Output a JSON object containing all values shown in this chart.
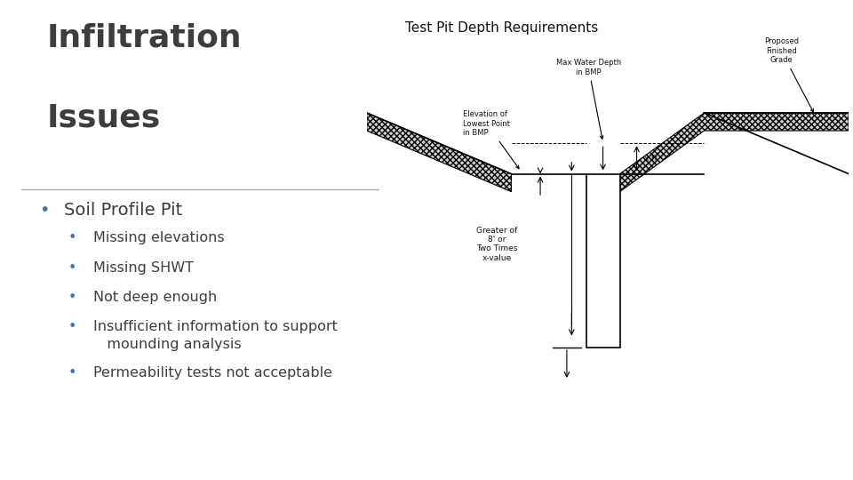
{
  "title_line1": "Infiltration",
  "title_line2": "Issues",
  "title_color": "#3d3d3d",
  "title_fontsize": 26,
  "title_fontfamily": "DejaVu Sans",
  "separator_color": "#aaaaaa",
  "bullet_main": "Soil Profile Pit",
  "bullet_main_color": "#3d3d3d",
  "bullet_main_fontsize": 14,
  "bullet_dot_color": "#4472a8",
  "bullet_sub_color": "#3d3d3d",
  "bullet_sub_fontsize": 11.5,
  "bullet_subs": [
    "Missing elevations",
    "Missing SHWT",
    "Not deep enough",
    "Insufficient information to support\n   mounding analysis",
    "Permeability tests not acceptable"
  ],
  "diagram_title": "Test Pit Depth Requirements",
  "diagram_title_fontsize": 11,
  "background_color": "#ffffff",
  "footer_color_top": "#4a6da0",
  "footer_color_bottom": "#5b8bbf",
  "diagram_text_fontsize": 6.5,
  "diagram_annot_fontsize": 6.0
}
